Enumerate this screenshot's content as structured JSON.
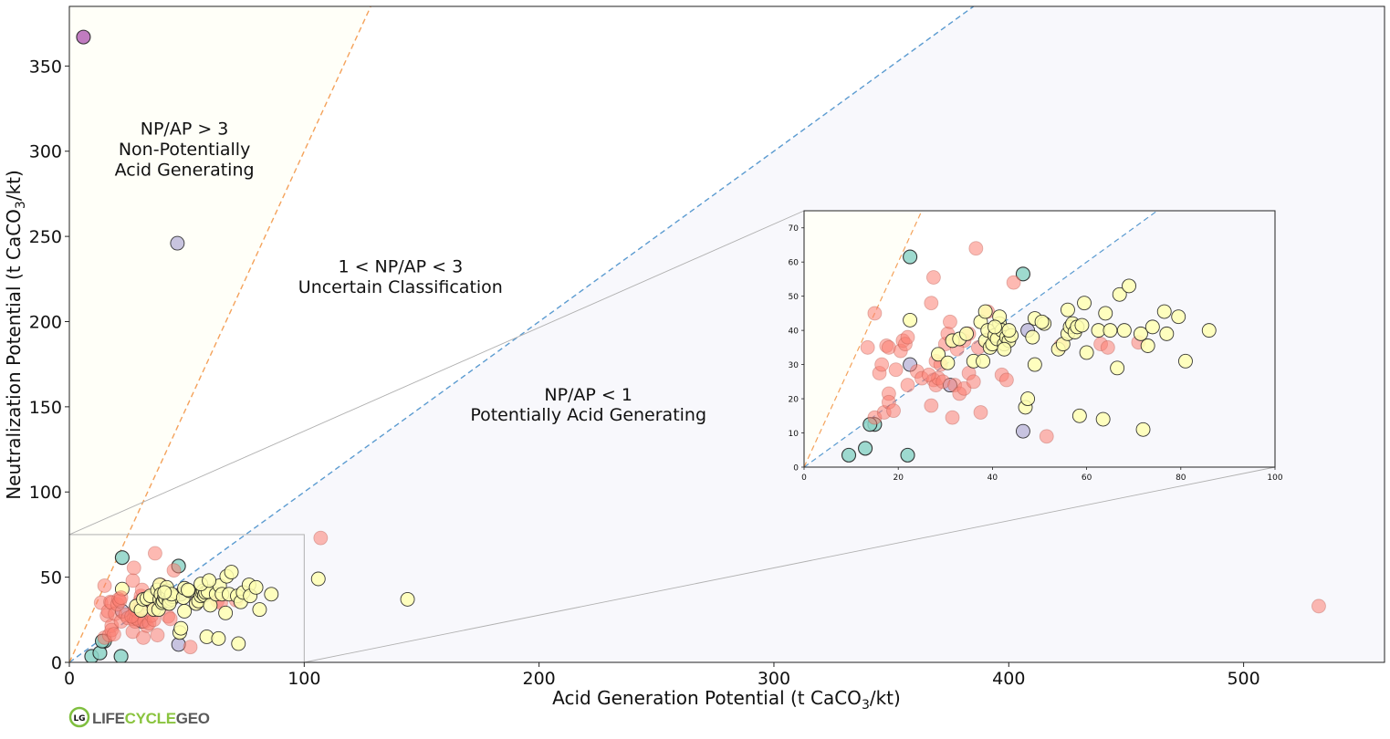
{
  "colors": {
    "pag_fill": "#f8f8fc",
    "nag_fill": "#fffff8",
    "ratio1_line": "#5b9bd0",
    "ratio3_line": "#f4a25b",
    "class_colors": {
      "teal": "#8dd3c7",
      "yellow": "#ffffb3",
      "lavender": "#bebada",
      "salmon": "#fb8072",
      "purple": "#b565b6"
    }
  },
  "chart_data": [
    {
      "id": "main",
      "type": "scatter",
      "xlabel_main": "Acid Generation Potential (t CaCO",
      "xlabel_sub": "3",
      "xlabel_tail": "/kt)",
      "ylabel_main": "Neutralization Potential (t CaCO",
      "ylabel_sub": "3",
      "ylabel_tail": "/kt)",
      "xlim": [
        0,
        560
      ],
      "ylim": [
        0,
        385
      ],
      "xticks": [
        0,
        100,
        200,
        300,
        400,
        500
      ],
      "yticks": [
        0,
        50,
        100,
        150,
        200,
        250,
        300,
        350
      ],
      "reference_lines": [
        {
          "name": "NP/AP = 1",
          "slope": 1,
          "color": "ratio1_line"
        },
        {
          "name": "NP/AP = 3",
          "slope": 3,
          "color": "ratio3_line"
        }
      ],
      "regions": [
        {
          "lines": [
            "NP/AP > 3",
            "Non-Potentially",
            "Acid Generating"
          ],
          "x": 49,
          "y": [
            313,
            301,
            289
          ]
        },
        {
          "lines": [
            "1 < NP/AP < 3",
            "Uncertain Classification"
          ],
          "x": 141,
          "y": [
            232,
            220
          ]
        },
        {
          "lines": [
            "NP/AP < 1",
            "Potentially Acid Generating"
          ],
          "x": 221,
          "y": [
            157,
            145
          ]
        }
      ],
      "zoom_box": {
        "x": [
          0,
          100
        ],
        "y": [
          0,
          75
        ]
      },
      "outliers": [
        {
          "x": 6,
          "y": 367,
          "cls": "purple"
        },
        {
          "x": 46,
          "y": 246,
          "cls": "lavender"
        },
        {
          "x": 107,
          "y": 73,
          "cls": "salmon"
        },
        {
          "x": 106,
          "y": 49,
          "cls": "yellow"
        },
        {
          "x": 144,
          "y": 37,
          "cls": "yellow"
        },
        {
          "x": 532,
          "y": 33,
          "cls": "salmon"
        }
      ]
    },
    {
      "id": "inset",
      "type": "scatter",
      "xlim": [
        0,
        100
      ],
      "ylim": [
        0,
        75
      ],
      "xticks": [
        0,
        20,
        40,
        60,
        80,
        100
      ],
      "yticks": [
        0,
        10,
        20,
        30,
        40,
        50,
        60,
        70
      ],
      "points": [
        {
          "x": 9.5,
          "y": 3.5,
          "cls": "teal"
        },
        {
          "x": 13,
          "y": 5.5,
          "cls": "teal"
        },
        {
          "x": 22,
          "y": 3.5,
          "cls": "teal"
        },
        {
          "x": 15,
          "y": 12.5,
          "cls": "teal"
        },
        {
          "x": 14,
          "y": 12.5,
          "cls": "teal"
        },
        {
          "x": 22.5,
          "y": 61.5,
          "cls": "teal"
        },
        {
          "x": 46.5,
          "y": 56.5,
          "cls": "teal"
        },
        {
          "x": 22.5,
          "y": 43,
          "cls": "yellow"
        },
        {
          "x": 22.5,
          "y": 30,
          "cls": "lavender"
        },
        {
          "x": 31,
          "y": 24,
          "cls": "lavender"
        },
        {
          "x": 46.5,
          "y": 10.5,
          "cls": "lavender"
        },
        {
          "x": 47.5,
          "y": 40,
          "cls": "lavender"
        },
        {
          "x": 15,
          "y": 45,
          "cls": "salmon"
        },
        {
          "x": 13.5,
          "y": 35,
          "cls": "salmon"
        },
        {
          "x": 15,
          "y": 14.5,
          "cls": "salmon"
        },
        {
          "x": 16,
          "y": 27.5,
          "cls": "salmon"
        },
        {
          "x": 16.5,
          "y": 30,
          "cls": "salmon"
        },
        {
          "x": 17,
          "y": 16,
          "cls": "salmon"
        },
        {
          "x": 17.5,
          "y": 35.5,
          "cls": "salmon"
        },
        {
          "x": 18,
          "y": 35,
          "cls": "salmon"
        },
        {
          "x": 18,
          "y": 21.5,
          "cls": "salmon"
        },
        {
          "x": 18,
          "y": 19,
          "cls": "salmon"
        },
        {
          "x": 19,
          "y": 16.5,
          "cls": "salmon"
        },
        {
          "x": 19.5,
          "y": 28.5,
          "cls": "salmon"
        },
        {
          "x": 20.5,
          "y": 34,
          "cls": "salmon"
        },
        {
          "x": 21,
          "y": 37,
          "cls": "salmon"
        },
        {
          "x": 21.5,
          "y": 36,
          "cls": "salmon"
        },
        {
          "x": 22,
          "y": 24,
          "cls": "salmon"
        },
        {
          "x": 22,
          "y": 38,
          "cls": "salmon"
        },
        {
          "x": 24,
          "y": 28,
          "cls": "salmon"
        },
        {
          "x": 25,
          "y": 26,
          "cls": "salmon"
        },
        {
          "x": 27,
          "y": 48,
          "cls": "salmon"
        },
        {
          "x": 27.5,
          "y": 55.5,
          "cls": "salmon"
        },
        {
          "x": 27,
          "y": 18,
          "cls": "salmon"
        },
        {
          "x": 27.5,
          "y": 25.5,
          "cls": "salmon"
        },
        {
          "x": 28,
          "y": 24,
          "cls": "salmon"
        },
        {
          "x": 28,
          "y": 31,
          "cls": "salmon"
        },
        {
          "x": 28.5,
          "y": 26,
          "cls": "salmon"
        },
        {
          "x": 29,
          "y": 30,
          "cls": "salmon"
        },
        {
          "x": 29.5,
          "y": 25,
          "cls": "salmon"
        },
        {
          "x": 30,
          "y": 36,
          "cls": "salmon"
        },
        {
          "x": 30.5,
          "y": 39,
          "cls": "salmon"
        },
        {
          "x": 31,
          "y": 42.5,
          "cls": "salmon"
        },
        {
          "x": 31.5,
          "y": 14.5,
          "cls": "salmon"
        },
        {
          "x": 32,
          "y": 24,
          "cls": "salmon"
        },
        {
          "x": 33,
          "y": 21.5,
          "cls": "salmon"
        },
        {
          "x": 34,
          "y": 23,
          "cls": "salmon"
        },
        {
          "x": 34,
          "y": 37,
          "cls": "salmon"
        },
        {
          "x": 35,
          "y": 39,
          "cls": "salmon"
        },
        {
          "x": 35,
          "y": 27.5,
          "cls": "salmon"
        },
        {
          "x": 36,
          "y": 25,
          "cls": "salmon"
        },
        {
          "x": 36.5,
          "y": 64,
          "cls": "salmon"
        },
        {
          "x": 37,
          "y": 35,
          "cls": "salmon"
        },
        {
          "x": 37.5,
          "y": 16,
          "cls": "salmon"
        },
        {
          "x": 39,
          "y": 45.5,
          "cls": "salmon"
        },
        {
          "x": 40,
          "y": 38.5,
          "cls": "salmon"
        },
        {
          "x": 42,
          "y": 27,
          "cls": "salmon"
        },
        {
          "x": 43,
          "y": 25.5,
          "cls": "salmon"
        },
        {
          "x": 44.5,
          "y": 54,
          "cls": "salmon"
        },
        {
          "x": 51.5,
          "y": 9,
          "cls": "salmon"
        },
        {
          "x": 54.5,
          "y": 35.5,
          "cls": "salmon"
        },
        {
          "x": 63,
          "y": 36,
          "cls": "salmon"
        },
        {
          "x": 64.5,
          "y": 35,
          "cls": "salmon"
        },
        {
          "x": 71,
          "y": 36.5,
          "cls": "salmon"
        },
        {
          "x": 26.5,
          "y": 27,
          "cls": "salmon"
        },
        {
          "x": 32.5,
          "y": 34.5,
          "cls": "salmon"
        },
        {
          "x": 28.5,
          "y": 33,
          "cls": "yellow"
        },
        {
          "x": 30.5,
          "y": 30.5,
          "cls": "yellow"
        },
        {
          "x": 31.5,
          "y": 37,
          "cls": "yellow"
        },
        {
          "x": 33,
          "y": 37.5,
          "cls": "yellow"
        },
        {
          "x": 34.5,
          "y": 39,
          "cls": "yellow"
        },
        {
          "x": 36,
          "y": 31,
          "cls": "yellow"
        },
        {
          "x": 37.5,
          "y": 42.5,
          "cls": "yellow"
        },
        {
          "x": 38.5,
          "y": 45.5,
          "cls": "yellow"
        },
        {
          "x": 38,
          "y": 31,
          "cls": "yellow"
        },
        {
          "x": 38.5,
          "y": 37,
          "cls": "yellow"
        },
        {
          "x": 39,
          "y": 40,
          "cls": "yellow"
        },
        {
          "x": 39.5,
          "y": 35,
          "cls": "yellow"
        },
        {
          "x": 40,
          "y": 36,
          "cls": "yellow"
        },
        {
          "x": 40.5,
          "y": 38.5,
          "cls": "yellow"
        },
        {
          "x": 41,
          "y": 37.5,
          "cls": "yellow"
        },
        {
          "x": 41.5,
          "y": 42,
          "cls": "yellow"
        },
        {
          "x": 42,
          "y": 40,
          "cls": "yellow"
        },
        {
          "x": 42.5,
          "y": 36,
          "cls": "yellow"
        },
        {
          "x": 43,
          "y": 38,
          "cls": "yellow"
        },
        {
          "x": 43.5,
          "y": 37,
          "cls": "yellow"
        },
        {
          "x": 44,
          "y": 38.5,
          "cls": "yellow"
        },
        {
          "x": 41.5,
          "y": 44,
          "cls": "yellow"
        },
        {
          "x": 42.5,
          "y": 34.5,
          "cls": "yellow"
        },
        {
          "x": 43.5,
          "y": 40,
          "cls": "yellow"
        },
        {
          "x": 47,
          "y": 17.5,
          "cls": "yellow"
        },
        {
          "x": 47.5,
          "y": 20,
          "cls": "yellow"
        },
        {
          "x": 48.5,
          "y": 38,
          "cls": "yellow"
        },
        {
          "x": 49,
          "y": 30,
          "cls": "yellow"
        },
        {
          "x": 49,
          "y": 43.5,
          "cls": "yellow"
        },
        {
          "x": 51,
          "y": 42,
          "cls": "yellow"
        },
        {
          "x": 54,
          "y": 34.5,
          "cls": "yellow"
        },
        {
          "x": 55,
          "y": 36,
          "cls": "yellow"
        },
        {
          "x": 56,
          "y": 39,
          "cls": "yellow"
        },
        {
          "x": 56.5,
          "y": 41,
          "cls": "yellow"
        },
        {
          "x": 57,
          "y": 42,
          "cls": "yellow"
        },
        {
          "x": 57.5,
          "y": 39.5,
          "cls": "yellow"
        },
        {
          "x": 58,
          "y": 41,
          "cls": "yellow"
        },
        {
          "x": 58.5,
          "y": 15,
          "cls": "yellow"
        },
        {
          "x": 59,
          "y": 41.5,
          "cls": "yellow"
        },
        {
          "x": 60,
          "y": 33.5,
          "cls": "yellow"
        },
        {
          "x": 62.5,
          "y": 40,
          "cls": "yellow"
        },
        {
          "x": 63.5,
          "y": 14,
          "cls": "yellow"
        },
        {
          "x": 64,
          "y": 45,
          "cls": "yellow"
        },
        {
          "x": 65,
          "y": 40,
          "cls": "yellow"
        },
        {
          "x": 66.5,
          "y": 29,
          "cls": "yellow"
        },
        {
          "x": 67,
          "y": 50.5,
          "cls": "yellow"
        },
        {
          "x": 68,
          "y": 40,
          "cls": "yellow"
        },
        {
          "x": 69,
          "y": 53,
          "cls": "yellow"
        },
        {
          "x": 71.5,
          "y": 39,
          "cls": "yellow"
        },
        {
          "x": 72,
          "y": 11,
          "cls": "yellow"
        },
        {
          "x": 73,
          "y": 35.5,
          "cls": "yellow"
        },
        {
          "x": 74,
          "y": 41,
          "cls": "yellow"
        },
        {
          "x": 76.5,
          "y": 45.5,
          "cls": "yellow"
        },
        {
          "x": 77,
          "y": 39,
          "cls": "yellow"
        },
        {
          "x": 79.5,
          "y": 44,
          "cls": "yellow"
        },
        {
          "x": 81,
          "y": 31,
          "cls": "yellow"
        },
        {
          "x": 86,
          "y": 40,
          "cls": "yellow"
        },
        {
          "x": 56,
          "y": 46,
          "cls": "yellow"
        },
        {
          "x": 59.5,
          "y": 48,
          "cls": "yellow"
        },
        {
          "x": 50.5,
          "y": 42.5,
          "cls": "yellow"
        },
        {
          "x": 40.5,
          "y": 41,
          "cls": "yellow"
        }
      ]
    }
  ],
  "logo": {
    "prefix": "LIFE",
    "middle": "CYCLE",
    "suffix": "GEO",
    "badge": "LG"
  }
}
